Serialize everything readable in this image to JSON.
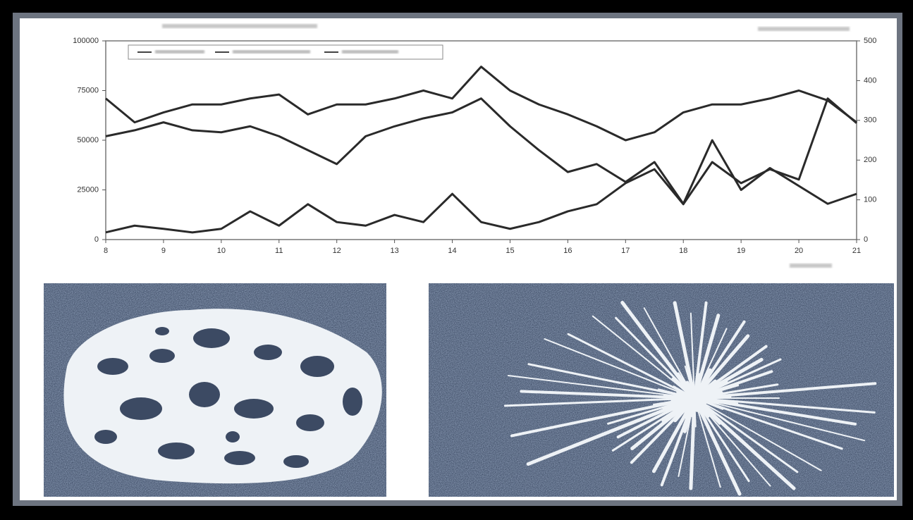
{
  "chart_data": {
    "type": "line",
    "x": [
      8,
      8.5,
      9,
      9.5,
      10,
      10.5,
      11,
      11.5,
      12,
      12.5,
      13,
      13.5,
      14,
      14.5,
      15,
      15.5,
      16,
      16.5,
      17,
      17.5,
      18,
      18.5,
      19,
      19.5,
      20,
      20.5,
      21
    ],
    "xlim": [
      8,
      21
    ],
    "xticks": [
      8,
      9,
      10,
      11,
      12,
      13,
      14,
      15,
      16,
      17,
      18,
      19,
      20,
      21
    ],
    "ylim": [
      0,
      100000
    ],
    "yticks": [
      0,
      25000,
      50000,
      75000,
      100000
    ],
    "y2lim": [
      0,
      500
    ],
    "y2ticks": [
      0,
      100,
      200,
      300,
      400,
      500
    ],
    "series": [
      {
        "color": "#2a2a2a",
        "values": [
          71000,
          59000,
          64000,
          68000,
          68000,
          71000,
          73000,
          63000,
          68000,
          68000,
          71000,
          75000,
          71000,
          87000,
          75000,
          68000,
          63000,
          57000,
          50000,
          54000,
          64000,
          68000,
          68000,
          71000,
          75000,
          70000,
          59000
        ]
      },
      {
        "color": "#2a2a2a",
        "values": [
          52000,
          55000,
          59000,
          55000,
          54000,
          57000,
          52000,
          45000,
          38000,
          52000,
          57000,
          61000,
          64000,
          71000,
          57000,
          45000,
          34000,
          38000,
          29000,
          39000,
          18000,
          50000,
          25000,
          36000,
          27000,
          18000,
          23000
        ]
      },
      {
        "color": "#2a2a2a",
        "axis": "y2",
        "values": [
          18,
          35,
          27,
          18,
          27,
          71,
          35,
          89,
          44,
          35,
          62,
          44,
          115,
          44,
          27,
          44,
          71,
          89,
          142,
          177,
          89,
          195,
          142,
          177,
          151,
          355,
          293
        ]
      }
    ]
  }
}
